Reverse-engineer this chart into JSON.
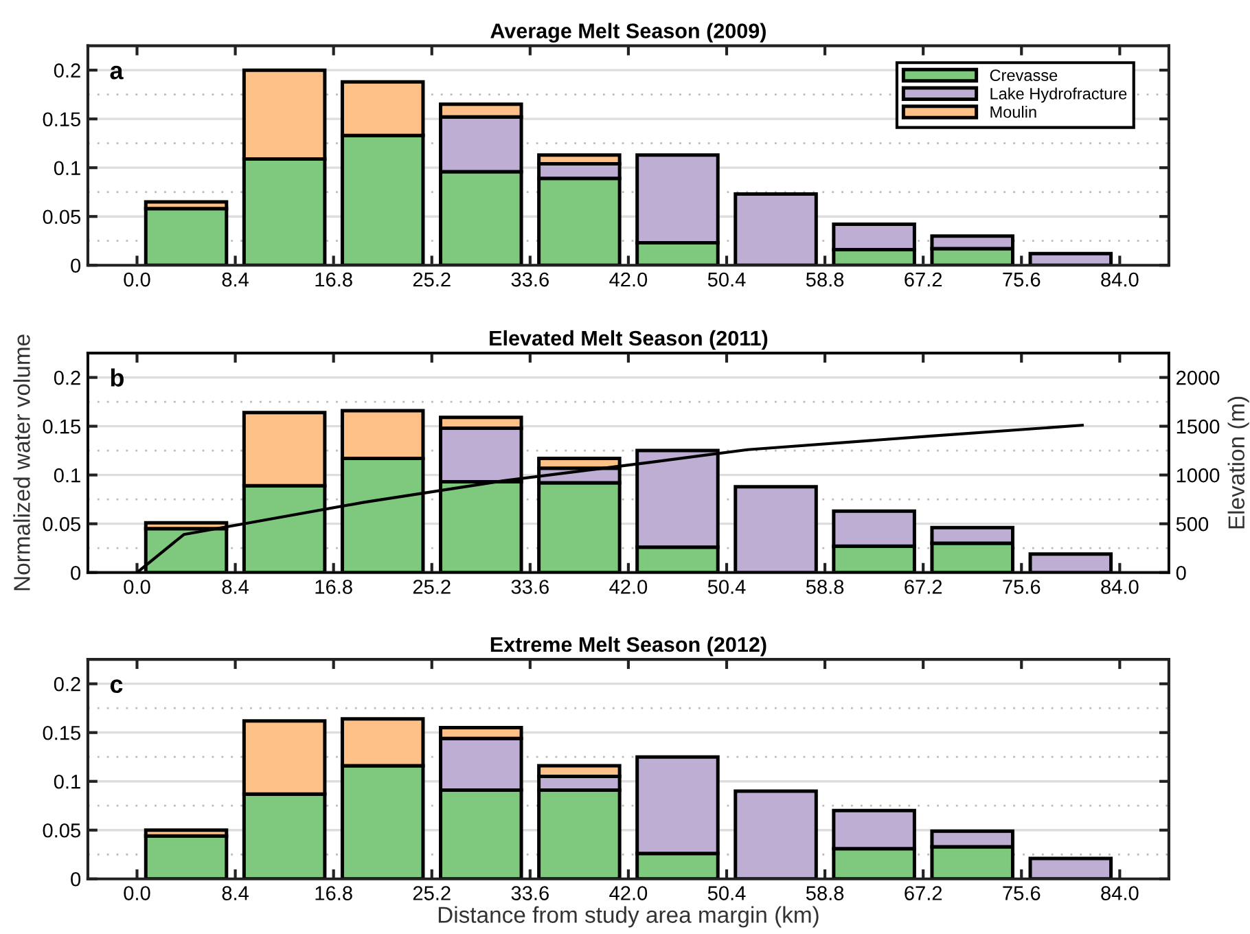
{
  "chart_data": [
    {
      "type": "bar",
      "stacked": true,
      "title": "Average Melt Season (2009)",
      "annotations": [
        "a"
      ],
      "x": [
        4.2,
        12.6,
        21.0,
        29.4,
        37.8,
        46.2,
        54.6,
        63.0,
        71.4,
        79.8
      ],
      "series": [
        {
          "name": "Crevasse",
          "color": "#7fc97f",
          "values": [
            0.058,
            0.109,
            0.133,
            0.096,
            0.089,
            0.023,
            0,
            0.016,
            0.017,
            0
          ]
        },
        {
          "name": "Lake Hydrofracture",
          "color": "#beaed4",
          "values": [
            0,
            0,
            0,
            0.056,
            0.015,
            0.09,
            0.073,
            0.026,
            0.013,
            0.012
          ]
        },
        {
          "name": "Moulin",
          "color": "#fdc086",
          "values": [
            0.007,
            0.091,
            0.055,
            0.013,
            0.009,
            0,
            0,
            0,
            0,
            0
          ]
        }
      ],
      "xlim": [
        -4.2,
        88.2
      ],
      "xticks": [
        {
          "value": 0,
          "label": "0.0"
        },
        8.4,
        16.8,
        25.2,
        33.6,
        {
          "value": 42,
          "label": "42.0"
        },
        50.4,
        58.8,
        67.2,
        75.6,
        {
          "value": 84,
          "label": "84.0"
        }
      ],
      "ylim": [
        0,
        0.225
      ],
      "yticks": [
        0,
        0.05,
        0.1,
        0.15,
        0.2
      ],
      "grid": "y",
      "legend": "top right"
    },
    {
      "type": "bar",
      "stacked": true,
      "title": "Elevated Melt Season (2011)",
      "annotations": [
        "b"
      ],
      "ylabel": "Normalized water volume",
      "y2label": "Elevation (m)",
      "x": [
        4.2,
        12.6,
        21.0,
        29.4,
        37.8,
        46.2,
        54.6,
        63.0,
        71.4,
        79.8
      ],
      "series": [
        {
          "color": "#7fc97f",
          "values": [
            0.045,
            0.089,
            0.117,
            0.093,
            0.092,
            0.026,
            0,
            0.027,
            0.03,
            0
          ]
        },
        {
          "color": "#beaed4",
          "values": [
            0,
            0,
            0,
            0.055,
            0.015,
            0.099,
            0.088,
            0.036,
            0.016,
            0.019
          ]
        },
        {
          "color": "#fdc086",
          "values": [
            0.006,
            0.075,
            0.049,
            0.011,
            0.01,
            0,
            0,
            0,
            0,
            0
          ]
        },
        {
          "type": "line",
          "axis": "y2",
          "color": "#000000",
          "x": [
            0,
            4.0,
            9.6,
            19.4,
            31.3,
            43.9,
            52.2,
            67.9,
            80.8
          ],
          "values": [
            0,
            390,
            510,
            720,
            940,
            1130,
            1260,
            1400,
            1510
          ]
        }
      ],
      "xlim": [
        -4.2,
        88.2
      ],
      "xticks": [
        {
          "value": 0,
          "label": "0.0"
        },
        8.4,
        16.8,
        25.2,
        33.6,
        {
          "value": 42,
          "label": "42.0"
        },
        50.4,
        58.8,
        67.2,
        75.6,
        {
          "value": 84,
          "label": "84.0"
        }
      ],
      "ylim": [
        0,
        0.225
      ],
      "yticks": [
        0,
        0.05,
        0.1,
        0.15,
        0.2
      ],
      "y2lim": [
        0,
        2250
      ],
      "y2ticks": [
        0,
        500,
        1000,
        1500,
        2000
      ],
      "grid": "y"
    },
    {
      "type": "bar",
      "stacked": true,
      "title": "Extreme Melt Season (2012)",
      "annotations": [
        "c"
      ],
      "xlabel": "Distance from study area margin (km)",
      "x": [
        4.2,
        12.6,
        21.0,
        29.4,
        37.8,
        46.2,
        54.6,
        63.0,
        71.4,
        79.8
      ],
      "series": [
        {
          "color": "#7fc97f",
          "values": [
            0.044,
            0.087,
            0.116,
            0.091,
            0.091,
            0.026,
            0,
            0.031,
            0.033,
            0
          ]
        },
        {
          "color": "#beaed4",
          "values": [
            0,
            0,
            0,
            0.053,
            0.014,
            0.099,
            0.09,
            0.039,
            0.016,
            0.021
          ]
        },
        {
          "color": "#fdc086",
          "values": [
            0.006,
            0.075,
            0.048,
            0.011,
            0.011,
            0,
            0,
            0,
            0,
            0
          ]
        }
      ],
      "xlim": [
        -4.2,
        88.2
      ],
      "xticks": [
        {
          "value": 0,
          "label": "0.0"
        },
        8.4,
        16.8,
        25.2,
        33.6,
        {
          "value": 42,
          "label": "42.0"
        },
        50.4,
        58.8,
        67.2,
        75.6,
        {
          "value": 84,
          "label": "84.0"
        }
      ],
      "ylim": [
        0,
        0.225
      ],
      "yticks": [
        0,
        0.05,
        0.1,
        0.15,
        0.2
      ],
      "grid": "y"
    }
  ]
}
